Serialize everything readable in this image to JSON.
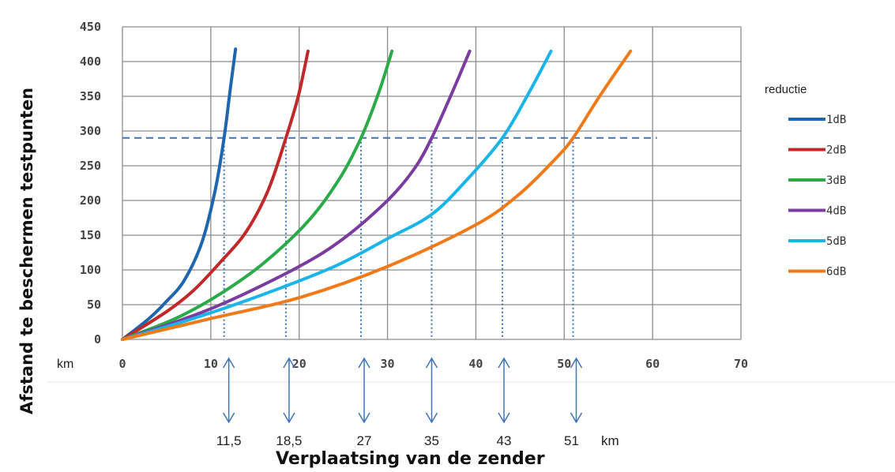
{
  "chart_data": {
    "type": "line",
    "title": "",
    "xlabel": "Verplaatsing van de zender",
    "ylabel": "Afstand te beschermen testpunten",
    "x_unit_label": "km",
    "xlim": [
      0,
      70
    ],
    "ylim": [
      0,
      450
    ],
    "x_ticks": [
      "0",
      "10",
      "20",
      "30",
      "40",
      "50",
      "60",
      "70"
    ],
    "y_ticks": [
      "0",
      "50",
      "100",
      "150",
      "200",
      "250",
      "300",
      "350",
      "400",
      "450"
    ],
    "grid": "both",
    "legend_title": "reductie",
    "legend_position": "right",
    "series": [
      {
        "name": "1dB",
        "color": "#1f66b0",
        "points": [
          [
            0,
            0
          ],
          [
            3,
            30
          ],
          [
            5,
            55
          ],
          [
            7,
            85
          ],
          [
            9,
            140
          ],
          [
            10.5,
            215
          ],
          [
            11.5,
            290
          ],
          [
            12.2,
            360
          ],
          [
            12.8,
            418
          ]
        ]
      },
      {
        "name": "2dB",
        "color": "#c0282a",
        "points": [
          [
            0,
            0
          ],
          [
            5,
            40
          ],
          [
            8,
            70
          ],
          [
            11,
            110
          ],
          [
            14,
            155
          ],
          [
            16.5,
            215
          ],
          [
            18.5,
            290
          ],
          [
            19.9,
            350
          ],
          [
            21,
            415
          ]
        ]
      },
      {
        "name": "3dB",
        "color": "#2aaa48",
        "points": [
          [
            0,
            0
          ],
          [
            6,
            30
          ],
          [
            11,
            65
          ],
          [
            16,
            110
          ],
          [
            21,
            170
          ],
          [
            24.5,
            230
          ],
          [
            27,
            290
          ],
          [
            29,
            355
          ],
          [
            30.5,
            415
          ]
        ]
      },
      {
        "name": "4dB",
        "color": "#7a3c9e",
        "points": [
          [
            0,
            0
          ],
          [
            6,
            25
          ],
          [
            12,
            55
          ],
          [
            20,
            105
          ],
          [
            25,
            145
          ],
          [
            30,
            200
          ],
          [
            33,
            245
          ],
          [
            35,
            290
          ],
          [
            37.3,
            355
          ],
          [
            39.3,
            415
          ]
        ]
      },
      {
        "name": "5dB",
        "color": "#1ab4e8",
        "points": [
          [
            0,
            0
          ],
          [
            8,
            30
          ],
          [
            16,
            65
          ],
          [
            24,
            105
          ],
          [
            30,
            145
          ],
          [
            35,
            180
          ],
          [
            39,
            230
          ],
          [
            43,
            290
          ],
          [
            46,
            355
          ],
          [
            48.5,
            415
          ]
        ]
      },
      {
        "name": "6dB",
        "color": "#f07a19",
        "points": [
          [
            0,
            0
          ],
          [
            10,
            30
          ],
          [
            20,
            60
          ],
          [
            30,
            105
          ],
          [
            40,
            165
          ],
          [
            45,
            210
          ],
          [
            49,
            260
          ],
          [
            51,
            290
          ],
          [
            54,
            350
          ],
          [
            57.5,
            415
          ]
        ]
      }
    ],
    "reference_line": {
      "y": 290,
      "x_end": 60.5
    },
    "drop_lines_x": [
      11.5,
      18.5,
      27,
      35,
      43,
      51
    ],
    "km_annotations": [
      "11,5",
      "18,5",
      "27",
      "35",
      "43",
      "51"
    ],
    "km_annotation_unit": "km"
  }
}
